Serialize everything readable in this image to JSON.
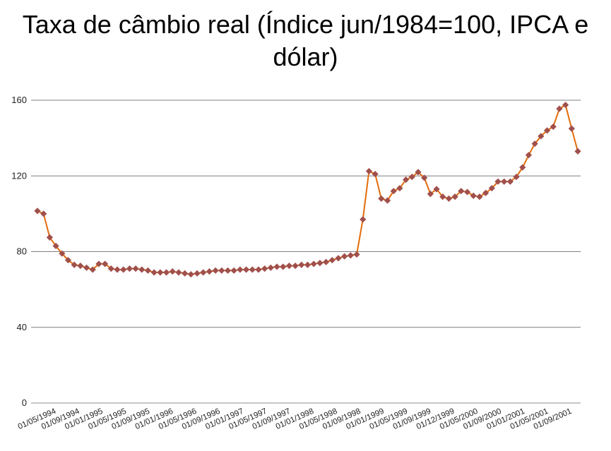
{
  "chart_data": {
    "type": "line",
    "title": "Taxa de câmbio real (Índice jun/1984=100, IPCA e dólar)",
    "xlabel": "",
    "ylabel": "",
    "ylim": [
      0,
      160
    ],
    "yticks": [
      0,
      40,
      80,
      120,
      160
    ],
    "grid": true,
    "legend": "none",
    "colors": {
      "line": "#E36C0A",
      "marker": "#A0504C",
      "grid": "#7f7f7f",
      "axis": "#8c8c8c"
    },
    "x_tick_labels": [
      "01/05/1994",
      "01/09/1994",
      "01/01/1995",
      "01/05/1995",
      "01/09/1995",
      "01/01/1996",
      "01/05/1996",
      "01/09/1996",
      "01/01/1997",
      "01/05/1997",
      "01/09/1997",
      "01/01/1998",
      "01/05/1998",
      "01/09/1998",
      "01/01/1999",
      "01/05/1999",
      "01/09/1999",
      "01/12/1999",
      "01/05/2000",
      "01/09/2000",
      "01/01/2001",
      "01/05/2001",
      "01/09/2001"
    ],
    "series": [
      {
        "values": [
          101.5,
          100,
          87.5,
          83,
          79,
          75.5,
          73,
          72.5,
          71.5,
          70.5,
          73.5,
          73.5,
          71,
          70.5,
          70.5,
          71,
          71,
          70.5,
          70,
          69,
          69,
          69,
          69.5,
          69,
          68.5,
          68,
          68.5,
          69,
          69.5,
          70,
          70,
          70,
          70,
          70.5,
          70.5,
          70.5,
          70.5,
          71,
          71.5,
          72,
          72,
          72.5,
          72.5,
          73,
          73,
          73.5,
          74,
          74.5,
          75.5,
          76.5,
          77.5,
          78,
          78.5,
          97,
          122.5,
          121,
          108,
          107,
          112,
          113.5,
          118,
          119.5,
          122,
          119,
          110.5,
          113,
          109,
          108,
          109,
          112,
          111.5,
          109.5,
          109,
          111,
          113.5,
          117,
          117,
          117,
          119.5,
          124.5,
          131,
          137,
          141,
          144,
          146,
          155.5,
          157.5,
          145,
          133
        ]
      }
    ]
  }
}
